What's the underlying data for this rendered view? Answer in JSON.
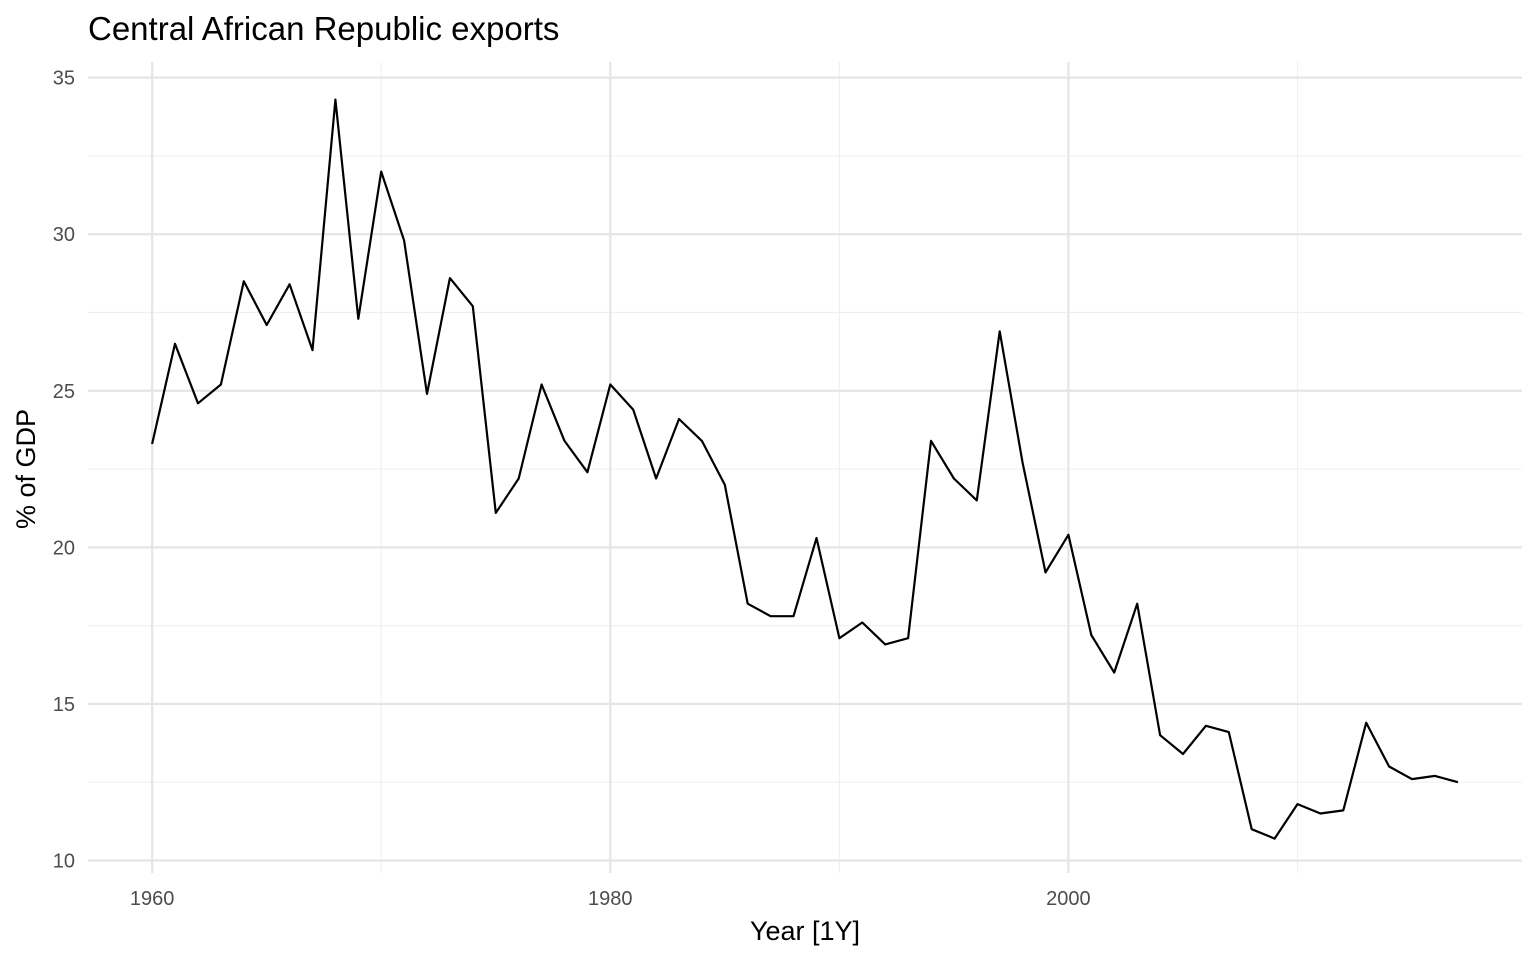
{
  "chart_data": {
    "type": "line",
    "title": "Central African Republic exports",
    "xlabel": "Year [1Y]",
    "ylabel": "% of GDP",
    "xlim": [
      1957.2,
      2019.8
    ],
    "ylim": [
      9.6,
      35.5
    ],
    "x_ticks": [
      1960,
      1980,
      2000
    ],
    "x_minor_ticks": [
      1970,
      1990,
      2010
    ],
    "y_ticks": [
      10,
      15,
      20,
      25,
      30,
      35
    ],
    "y_minor_ticks": [
      12.5,
      17.5,
      22.5,
      27.5,
      32.5
    ],
    "grid": true,
    "legend": "none",
    "series": [
      {
        "color": "#000000",
        "x": [
          1960,
          1961,
          1962,
          1963,
          1964,
          1965,
          1966,
          1967,
          1968,
          1969,
          1970,
          1971,
          1972,
          1973,
          1974,
          1975,
          1976,
          1977,
          1978,
          1979,
          1980,
          1981,
          1982,
          1983,
          1984,
          1985,
          1986,
          1987,
          1988,
          1989,
          1990,
          1991,
          1992,
          1993,
          1994,
          1995,
          1996,
          1997,
          1998,
          1999,
          2000,
          2001,
          2002,
          2003,
          2004,
          2005,
          2006,
          2007,
          2008,
          2009,
          2010,
          2011,
          2012,
          2013,
          2014,
          2015,
          2016,
          2017
        ],
        "values": [
          23.3,
          26.5,
          24.6,
          25.2,
          28.5,
          27.1,
          28.4,
          26.3,
          34.3,
          27.3,
          32.0,
          29.8,
          24.9,
          28.6,
          27.7,
          21.1,
          22.2,
          25.2,
          23.4,
          22.4,
          25.2,
          24.4,
          22.2,
          24.1,
          23.4,
          22.0,
          18.2,
          17.8,
          17.8,
          20.3,
          17.1,
          17.6,
          16.9,
          17.1,
          23.4,
          22.2,
          21.5,
          26.9,
          22.7,
          19.2,
          20.4,
          17.2,
          16.0,
          18.2,
          14.0,
          13.4,
          14.3,
          14.1,
          11.0,
          10.7,
          11.8,
          11.5,
          11.6,
          14.4,
          13.0,
          12.6,
          12.7,
          12.5
        ]
      }
    ]
  }
}
